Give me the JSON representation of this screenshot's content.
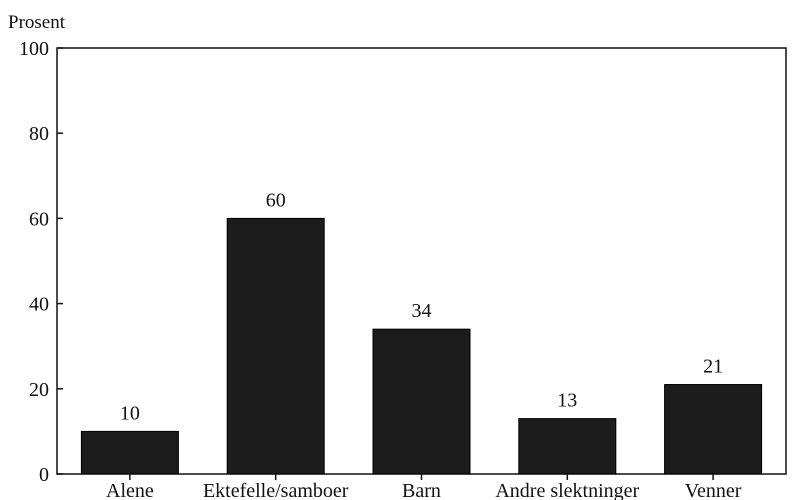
{
  "chart_data": {
    "type": "bar",
    "title": "",
    "xlabel": "",
    "ylabel": "Prosent",
    "ylim": [
      0,
      100
    ],
    "yticks": [
      0,
      20,
      40,
      60,
      80,
      100
    ],
    "categories": [
      "Alene",
      "Ektefelle/samboer",
      "Barn",
      "Andre slektninger",
      "Venner"
    ],
    "values": [
      10,
      60,
      34,
      13,
      21
    ],
    "data_labels": [
      "10",
      "60",
      "34",
      "13",
      "21"
    ],
    "grid": false,
    "legend": "none",
    "colors": {
      "bar": "#1c1c1c",
      "axis": "#111111",
      "text": "#111111"
    }
  }
}
